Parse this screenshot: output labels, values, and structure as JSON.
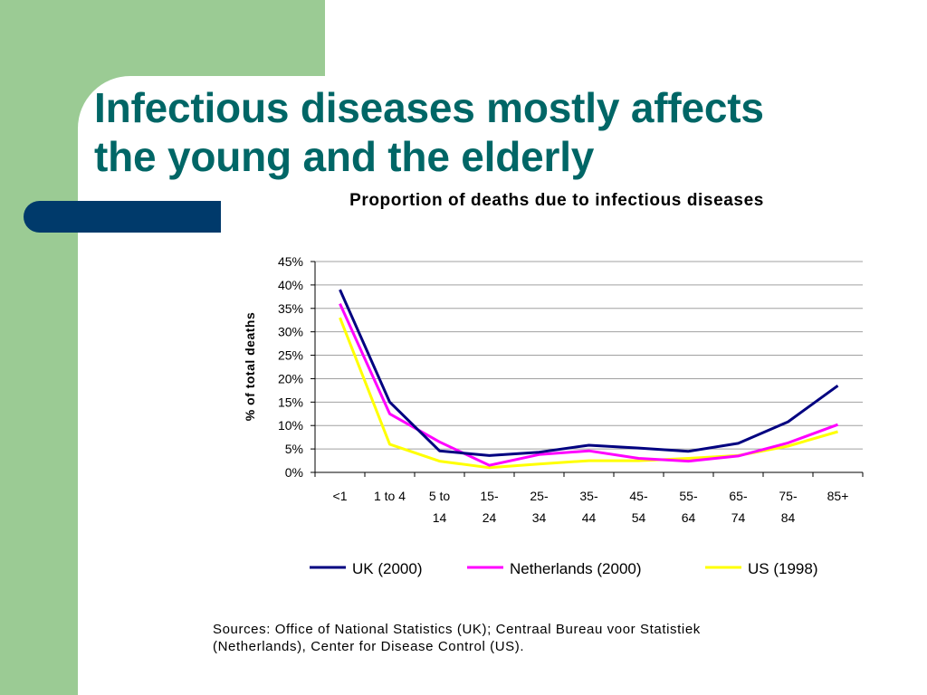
{
  "slide": {
    "title_line1": "Infectious diseases mostly affects",
    "title_line2": "the young and the elderly",
    "sources_line1": "Sources: Office of National Statistics (UK);  Centraal Bureau voor Statistiek",
    "sources_line2": "(Netherlands), Center for Disease Control (US)."
  },
  "colors": {
    "title": "#006666",
    "green_panel": "#9bcb94",
    "navy_pill": "#003a6b"
  },
  "chart_data": {
    "type": "line",
    "title": "Proportion of deaths due to infectious diseases",
    "xlabel": "",
    "ylabel": "% of total deaths",
    "ylim": [
      0,
      45
    ],
    "y_ticks": [
      "0%",
      "5%",
      "10%",
      "15%",
      "20%",
      "25%",
      "30%",
      "35%",
      "40%",
      "45%"
    ],
    "y_tick_values": [
      0,
      5,
      10,
      15,
      20,
      25,
      30,
      35,
      40,
      45
    ],
    "grid": true,
    "legend_position": "bottom",
    "categories": [
      [
        "<1"
      ],
      [
        "1 to 4"
      ],
      [
        "5 to",
        "14"
      ],
      [
        "15-",
        "24"
      ],
      [
        "25-",
        "34"
      ],
      [
        "35-",
        "44"
      ],
      [
        "45-",
        "54"
      ],
      [
        "55-",
        "64"
      ],
      [
        "65-",
        "74"
      ],
      [
        "75-",
        "84"
      ],
      [
        "85+"
      ]
    ],
    "series": [
      {
        "name": "UK (2000)",
        "color": "#000080",
        "values": [
          39,
          15,
          4.6,
          3.6,
          4.3,
          5.8,
          5.2,
          4.5,
          6.2,
          10.8,
          18.5
        ]
      },
      {
        "name": "Netherlands (2000)",
        "color": "#ff00ff",
        "values": [
          36,
          12.5,
          6.5,
          1.5,
          3.8,
          4.6,
          3.0,
          2.4,
          3.5,
          6.3,
          10.2
        ]
      },
      {
        "name": "US (1998)",
        "color": "#ffff00",
        "values": [
          33,
          6,
          2.4,
          1.0,
          1.8,
          2.5,
          2.5,
          3.0,
          3.6,
          5.6,
          8.7
        ]
      }
    ]
  }
}
